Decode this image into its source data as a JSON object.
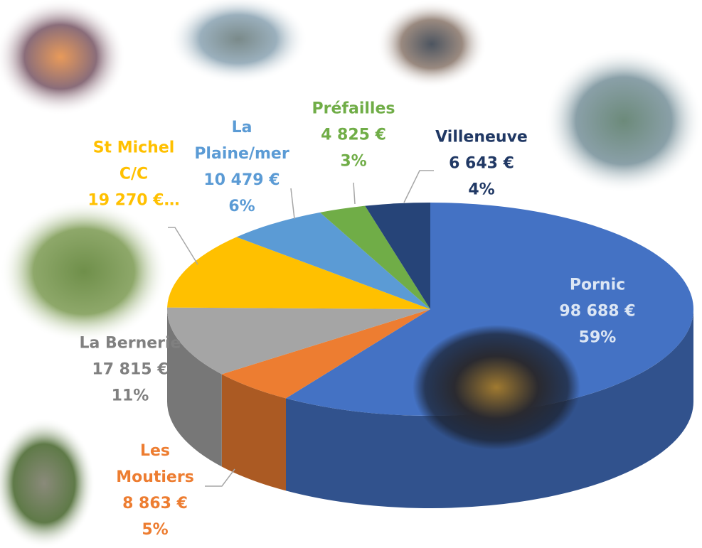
{
  "chart_data": {
    "type": "pie3d",
    "categories": [
      "Pornic",
      "Les Moutiers",
      "La Bernerie",
      "St Michel C/C",
      "La Plaine/mer",
      "Préfailles",
      "Villeneuve"
    ],
    "values": [
      98688,
      8863,
      17815,
      19270,
      10479,
      4825,
      6643
    ],
    "value_labels": [
      "98 688 €",
      "8 863 €",
      "17 815 €",
      "19 270 €…",
      "10 479 €",
      "4 825 €",
      "6 643 €"
    ],
    "percent_labels": [
      "59%",
      "5%",
      "11%",
      null,
      "6%",
      "3%",
      "4%"
    ],
    "colors": [
      "#4472c4",
      "#ed7d31",
      "#a5a5a5",
      "#ffc000",
      "#5b9bd5",
      "#70ad47",
      "#264478"
    ],
    "label_colors": [
      "#dce6f4",
      "#ed7d31",
      "#808080",
      "#ffc000",
      "#5b9bd5",
      "#70ad47",
      "#203864"
    ]
  }
}
